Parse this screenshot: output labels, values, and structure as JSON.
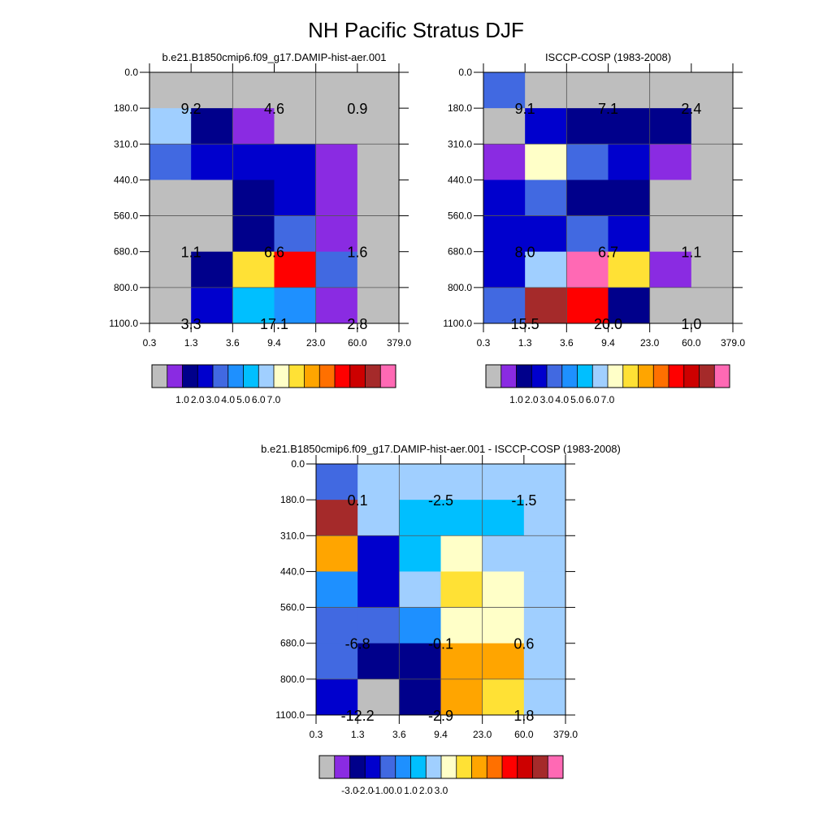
{
  "title": "NH Pacific Stratus DJF",
  "y_tick_labels": [
    "0.0",
    "180.0",
    "310.0",
    "440.0",
    "560.0",
    "680.0",
    "800.0",
    "1100.0"
  ],
  "x_tick_labels": [
    "0.3",
    "1.3",
    "3.6",
    "9.4",
    "23.0",
    "60.0",
    "379.0"
  ],
  "chart_data": [
    {
      "type": "heatmap",
      "title": "b.e21.B1850cmip6.f09_g17.DAMIP-hist-aer.001",
      "x_edges": [
        0.3,
        1.3,
        3.6,
        9.4,
        23.0,
        60.0,
        379.0
      ],
      "y_edges": [
        0.0,
        180.0,
        310.0,
        440.0,
        560.0,
        680.0,
        800.0,
        1100.0
      ],
      "cells": [
        [
          "#bebebe",
          "#bebebe",
          "#bebebe",
          "#bebebe",
          "#bebebe",
          "#bebebe"
        ],
        [
          "#a0cfff",
          "#00008b",
          "#8a2be2",
          "#bebebe",
          "#bebebe",
          "#bebebe"
        ],
        [
          "#4169e1",
          "#0000cd",
          "#0000cd",
          "#0000cd",
          "#8a2be2",
          "#bebebe"
        ],
        [
          "#bebebe",
          "#bebebe",
          "#00008b",
          "#0000cd",
          "#8a2be2",
          "#bebebe"
        ],
        [
          "#bebebe",
          "#bebebe",
          "#00008b",
          "#4169e1",
          "#8a2be2",
          "#bebebe"
        ],
        [
          "#bebebe",
          "#00008b",
          "#ffe135",
          "#ff0000",
          "#4169e1",
          "#bebebe"
        ],
        [
          "#bebebe",
          "#0000cd",
          "#00bfff",
          "#1e90ff",
          "#8a2be2",
          "#bebebe"
        ]
      ],
      "annotations": [
        {
          "text": "9.2",
          "x": 0.8,
          "y": 155
        },
        {
          "text": "4.6",
          "x": 6.5,
          "y": 155
        },
        {
          "text": "0.9",
          "x": 150,
          "y": 155
        },
        {
          "text": "1.1",
          "x": 0.8,
          "y": 620
        },
        {
          "text": "6.6",
          "x": 6.5,
          "y": 620
        },
        {
          "text": "1.6",
          "x": 150,
          "y": 620
        },
        {
          "text": "3.3",
          "x": 0.8,
          "y": 1050
        },
        {
          "text": "17.1",
          "x": 6.5,
          "y": 1050
        },
        {
          "text": "2.8",
          "x": 150,
          "y": 1050
        }
      ],
      "colorbar": {
        "colors": [
          "#bebebe",
          "#8a2be2",
          "#00008b",
          "#0000cd",
          "#4169e1",
          "#1e90ff",
          "#00bfff",
          "#a0cfff",
          "#ffffc8",
          "#ffe135",
          "#ffa500",
          "#ff7000",
          "#ff0000",
          "#cd0000",
          "#a52a2a",
          "#ff69b4"
        ],
        "labels": [
          "1.0",
          "2.0",
          "3.0",
          "4.0",
          "5.0",
          "6.0",
          "7.0"
        ]
      }
    },
    {
      "type": "heatmap",
      "title": "ISCCP-COSP (1983-2008)",
      "x_edges": [
        0.3,
        1.3,
        3.6,
        9.4,
        23.0,
        60.0,
        379.0
      ],
      "y_edges": [
        0.0,
        180.0,
        310.0,
        440.0,
        560.0,
        680.0,
        800.0,
        1100.0
      ],
      "cells": [
        [
          "#4169e1",
          "#bebebe",
          "#bebebe",
          "#bebebe",
          "#bebebe",
          "#bebebe"
        ],
        [
          "#bebebe",
          "#0000cd",
          "#00008b",
          "#00008b",
          "#00008b",
          "#bebebe"
        ],
        [
          "#8a2be2",
          "#ffffc8",
          "#4169e1",
          "#0000cd",
          "#8a2be2",
          "#bebebe"
        ],
        [
          "#0000cd",
          "#4169e1",
          "#00008b",
          "#00008b",
          "#bebebe",
          "#bebebe"
        ],
        [
          "#0000cd",
          "#0000cd",
          "#4169e1",
          "#0000cd",
          "#bebebe",
          "#bebebe"
        ],
        [
          "#0000cd",
          "#a0cfff",
          "#ff69b4",
          "#ffe135",
          "#8a2be2",
          "#bebebe"
        ],
        [
          "#4169e1",
          "#a52a2a",
          "#ff0000",
          "#00008b",
          "#bebebe",
          "#bebebe"
        ]
      ],
      "annotations": [
        {
          "text": "9.1",
          "x": 0.8,
          "y": 155
        },
        {
          "text": "7.1",
          "x": 6.5,
          "y": 155
        },
        {
          "text": "2.4",
          "x": 150,
          "y": 155
        },
        {
          "text": "8.0",
          "x": 0.8,
          "y": 620
        },
        {
          "text": "6.7",
          "x": 6.5,
          "y": 620
        },
        {
          "text": "1.1",
          "x": 150,
          "y": 620
        },
        {
          "text": "15.5",
          "x": 0.8,
          "y": 1050
        },
        {
          "text": "20.0",
          "x": 6.5,
          "y": 1050
        },
        {
          "text": "1.0",
          "x": 150,
          "y": 1050
        }
      ],
      "colorbar": {
        "colors": [
          "#bebebe",
          "#8a2be2",
          "#00008b",
          "#0000cd",
          "#4169e1",
          "#1e90ff",
          "#00bfff",
          "#a0cfff",
          "#ffffc8",
          "#ffe135",
          "#ffa500",
          "#ff7000",
          "#ff0000",
          "#cd0000",
          "#a52a2a",
          "#ff69b4"
        ],
        "labels": [
          "1.0",
          "2.0",
          "3.0",
          "4.0",
          "5.0",
          "6.0",
          "7.0"
        ]
      }
    },
    {
      "type": "heatmap",
      "title": "b.e21.B1850cmip6.f09_g17.DAMIP-hist-aer.001 - ISCCP-COSP (1983-2008)",
      "x_edges": [
        0.3,
        1.3,
        3.6,
        9.4,
        23.0,
        60.0,
        379.0
      ],
      "y_edges": [
        0.0,
        180.0,
        310.0,
        440.0,
        560.0,
        680.0,
        800.0,
        1100.0
      ],
      "cells": [
        [
          "#4169e1",
          "#a0cfff",
          "#a0cfff",
          "#a0cfff",
          "#a0cfff",
          "#a0cfff"
        ],
        [
          "#a52a2a",
          "#a0cfff",
          "#00bfff",
          "#00bfff",
          "#00bfff",
          "#a0cfff"
        ],
        [
          "#ffa500",
          "#0000cd",
          "#00bfff",
          "#ffffc8",
          "#a0cfff",
          "#a0cfff"
        ],
        [
          "#1e90ff",
          "#0000cd",
          "#a0cfff",
          "#ffe135",
          "#ffffc8",
          "#a0cfff"
        ],
        [
          "#4169e1",
          "#4169e1",
          "#1e90ff",
          "#ffffc8",
          "#ffffc8",
          "#a0cfff"
        ],
        [
          "#4169e1",
          "#00008b",
          "#00008b",
          "#ffa500",
          "#ffa500",
          "#a0cfff"
        ],
        [
          "#0000cd",
          "#bebebe",
          "#00008b",
          "#ffa500",
          "#ffe135",
          "#a0cfff"
        ]
      ],
      "annotations": [
        {
          "text": "0.1",
          "x": 0.8,
          "y": 155
        },
        {
          "text": "-2.5",
          "x": 6.5,
          "y": 155
        },
        {
          "text": "-1.5",
          "x": 150,
          "y": 155
        },
        {
          "text": "-6.8",
          "x": 0.8,
          "y": 620
        },
        {
          "text": "-0.1",
          "x": 6.5,
          "y": 620
        },
        {
          "text": "0.6",
          "x": 150,
          "y": 620
        },
        {
          "text": "-12.2",
          "x": 0.8,
          "y": 1050
        },
        {
          "text": "-2.9",
          "x": 6.5,
          "y": 1050
        },
        {
          "text": "1.8",
          "x": 150,
          "y": 1050
        }
      ],
      "colorbar": {
        "colors": [
          "#bebebe",
          "#8a2be2",
          "#00008b",
          "#0000cd",
          "#4169e1",
          "#1e90ff",
          "#00bfff",
          "#a0cfff",
          "#ffffc8",
          "#ffe135",
          "#ffa500",
          "#ff7000",
          "#ff0000",
          "#cd0000",
          "#a52a2a",
          "#ff69b4"
        ],
        "labels": [
          "-3.0",
          "-2.0",
          "-1.0",
          "0.0",
          "1.0",
          "2.0",
          "3.0"
        ]
      }
    }
  ]
}
